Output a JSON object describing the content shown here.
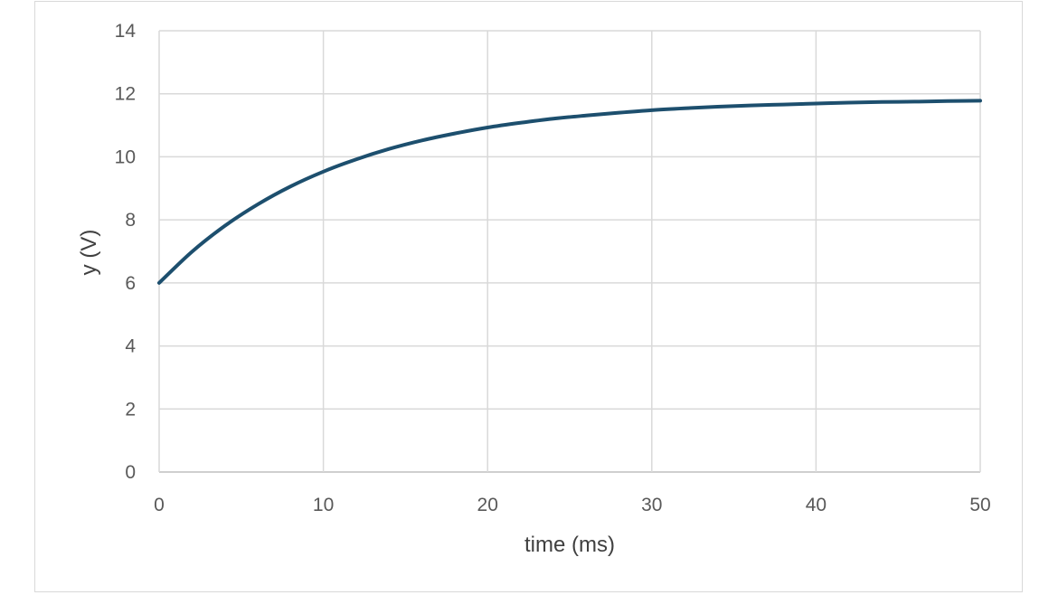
{
  "chart_data": {
    "type": "line",
    "title": "",
    "xlabel": "time (ms)",
    "ylabel": "y (V)",
    "xlim": [
      0,
      50
    ],
    "ylim": [
      0,
      14
    ],
    "x_ticks": [
      0,
      10,
      20,
      30,
      40,
      50
    ],
    "y_ticks": [
      0,
      2,
      4,
      6,
      8,
      10,
      12,
      14
    ],
    "grid": true,
    "legend": "none",
    "series": [
      {
        "x": [
          0,
          2,
          4,
          6,
          8,
          10,
          12,
          14,
          16,
          18,
          20,
          22,
          24,
          26,
          28,
          30,
          32,
          34,
          36,
          38,
          40,
          42,
          44,
          46,
          48,
          50
        ],
        "y": [
          6.0,
          6.99,
          7.81,
          8.49,
          9.06,
          9.53,
          9.92,
          10.25,
          10.52,
          10.74,
          10.93,
          11.08,
          11.21,
          11.31,
          11.4,
          11.48,
          11.54,
          11.59,
          11.63,
          11.66,
          11.69,
          11.72,
          11.74,
          11.75,
          11.77,
          11.78
        ]
      }
    ],
    "colors": {
      "line": "#1d4f6e",
      "grid": "#d9d9d9",
      "axis": "#bfbfbf"
    }
  }
}
